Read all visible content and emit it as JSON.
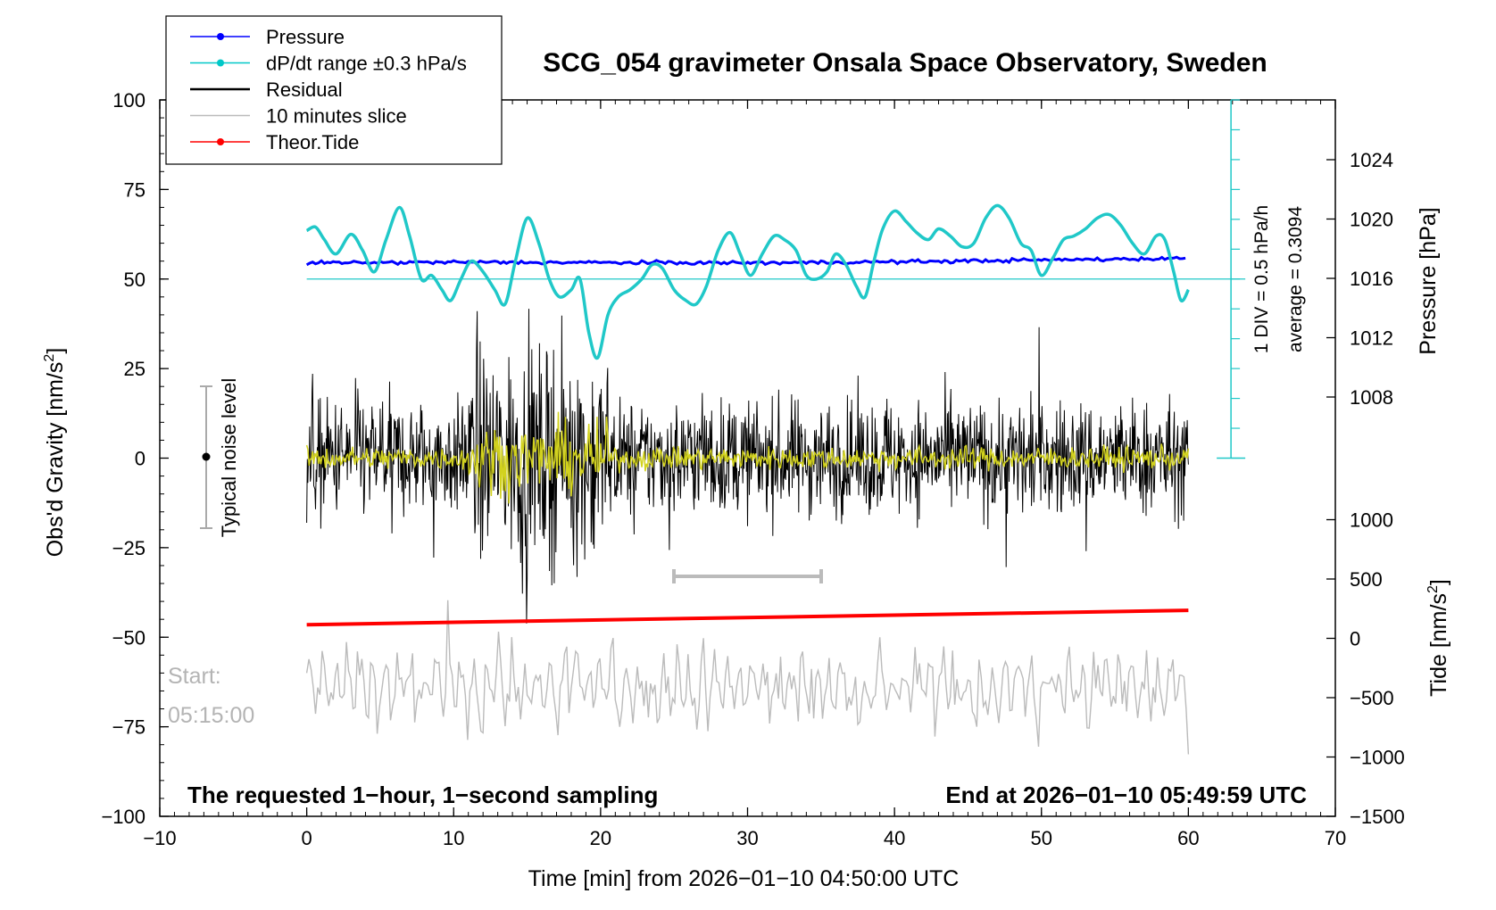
{
  "chart_data": {
    "type": "line",
    "title": "SCG_054 gravimeter Onsala Space Observatory, Sweden",
    "xlabel": "Time [min] from 2026−01−10 04:50:00 UTC",
    "ylabel_main": "Obs'd Gravity [nm/s",
    "ylabel_main_sup": "2",
    "ylabel_main_close": "]",
    "ylabel_pressure": "Pressure [hPa]",
    "ylabel_tide": "Tide [nm/s",
    "ylabel_tide_sup": "2",
    "ylabel_tide_close": "]",
    "xlim": [
      -10,
      70
    ],
    "ylim": [
      -100,
      100
    ],
    "x_ticks": [
      "−10",
      "0",
      "10",
      "20",
      "30",
      "40",
      "50",
      "60",
      "70"
    ],
    "y_ticks": [
      "−100",
      "−75",
      "−50",
      "−25",
      "0",
      "25",
      "50",
      "75",
      "100"
    ],
    "pressure_ticks": [
      "1008",
      "1012",
      "1016",
      "1020",
      "1024"
    ],
    "tide_ticks": [
      "−1500",
      "−1000",
      "−500",
      "0",
      "500",
      "1000"
    ],
    "legend": {
      "placement": "top-left",
      "items": [
        {
          "label": "Pressure",
          "color": "#0000ff",
          "marker": true
        },
        {
          "label": "dP/dt range ±0.3 hPa/s",
          "color": "#00c8c8",
          "marker": true
        },
        {
          "label": "Residual",
          "color": "#000000",
          "marker": false
        },
        {
          "label": "10 minutes slice",
          "color": "#bbbbbb",
          "marker": false
        },
        {
          "label": "Theor.Tide",
          "color": "#ff0000",
          "marker": true
        }
      ]
    },
    "annotations": {
      "scale_div": "1 DIV = 0.5 hPa/h",
      "average": "average = 0.3094",
      "noise_label": "Typical noise level",
      "start_label": "Start:",
      "start_time": "05:15:00",
      "footer_left": "The requested 1−hour, 1−second sampling",
      "footer_right": "End at 2026−01−10 05:49:59 UTC"
    },
    "colors": {
      "pressure": "#0000ff",
      "dpdt": "#20c8c8",
      "residual": "#000000",
      "residual_smooth": "#d2d21e",
      "slice": "#bbbbbb",
      "tide": "#ff0000"
    },
    "series": [
      {
        "name": "Pressure",
        "x": [
          0,
          10,
          20,
          30,
          40,
          50,
          60
        ],
        "values": [
          54.5,
          54.7,
          54.6,
          54.5,
          54.8,
          55.3,
          55.8
        ]
      },
      {
        "name": "Theor.Tide",
        "x": [
          0,
          60
        ],
        "values": [
          -46.5,
          -42.5
        ]
      },
      {
        "name": "dP/dt range ±0.3 hPa/s",
        "x": [
          0,
          0.6,
          1.2,
          2.0,
          3.0,
          3.8,
          4.6,
          5.4,
          6.3,
          7.0,
          7.8,
          8.5,
          9.2,
          9.8,
          10.5,
          11.2,
          12.0,
          12.8,
          13.5,
          14.2,
          15.0,
          15.8,
          16.5,
          17.2,
          18.0,
          18.6,
          19.2,
          19.8,
          20.5,
          21.2,
          22.0,
          22.8,
          23.5,
          24.2,
          25.0,
          25.8,
          26.5,
          27.2,
          28.0,
          28.8,
          29.5,
          30.2,
          31.0,
          31.8,
          32.5,
          33.3,
          34.0,
          34.7,
          35.4,
          36.0,
          36.7,
          37.4,
          38.0,
          38.6,
          39.2,
          40.0,
          40.8,
          41.5,
          42.3,
          43.0,
          43.8,
          44.6,
          45.4,
          46.2,
          47.0,
          47.8,
          48.6,
          49.3,
          50.0,
          50.8,
          51.5,
          52.2,
          53.0,
          53.8,
          54.6,
          55.4,
          56.2,
          57.0,
          57.8,
          58.4,
          59.0,
          59.5,
          60.0
        ],
        "values": [
          63.5,
          64.5,
          61,
          57,
          62.5,
          58,
          52,
          61,
          70,
          62,
          50,
          51,
          47,
          44,
          50,
          55,
          52,
          47,
          43,
          55,
          67,
          60,
          50,
          45,
          47,
          50,
          35,
          28,
          40,
          45,
          47,
          50,
          54,
          53,
          47,
          44,
          43,
          48,
          58,
          63,
          57,
          51,
          57,
          62,
          61,
          58,
          51,
          50,
          52,
          57,
          54,
          48,
          45,
          55,
          64,
          69,
          66,
          63,
          61,
          64,
          62,
          59,
          60,
          67,
          70.5,
          67,
          60,
          58,
          51,
          56,
          61,
          62,
          64,
          67,
          68,
          65,
          60,
          57,
          62,
          61,
          52,
          44,
          47
        ]
      },
      {
        "name": "Residual",
        "x": [
          0,
          60
        ],
        "values": [
          0,
          0
        ]
      },
      {
        "name": "10 minutes slice",
        "x": [
          0,
          60
        ],
        "values": [
          -64,
          -64
        ]
      }
    ]
  }
}
